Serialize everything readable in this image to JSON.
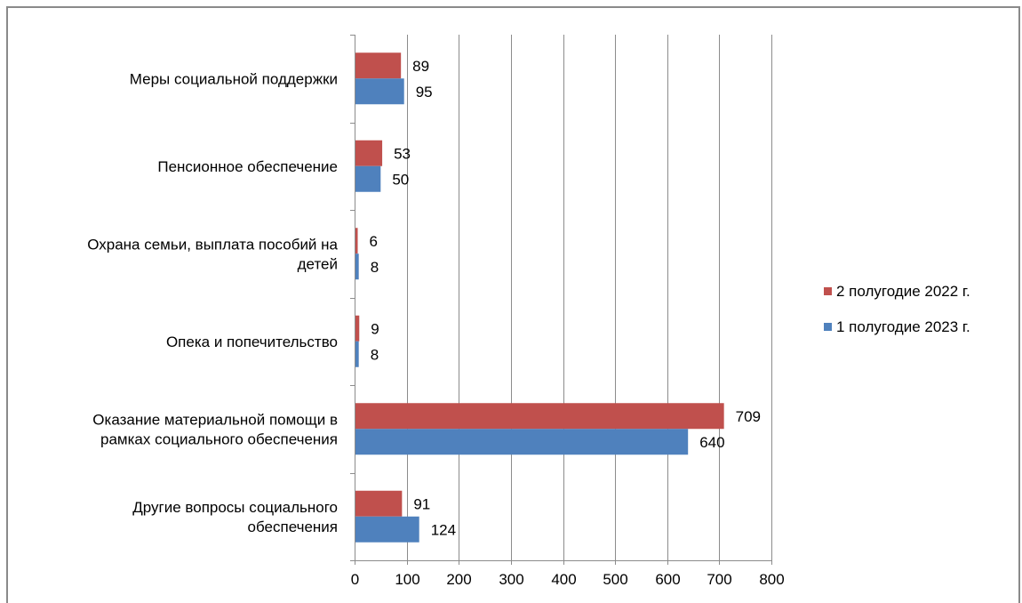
{
  "chart_data": {
    "type": "bar",
    "orientation": "horizontal",
    "categories": [
      [
        "Меры социальной поддержки"
      ],
      [
        "Пенсионное обеспечение"
      ],
      [
        "Охрана семьи, выплата пособий на",
        "детей"
      ],
      [
        "Опека и попечительство"
      ],
      [
        "Оказание материальной помощи в",
        "рамках социального обеспечения"
      ],
      [
        "Другие вопросы социального",
        "обеспечения"
      ]
    ],
    "series": [
      {
        "name": "2 полугодие 2022 г.",
        "color": "#c0504d",
        "values": [
          89,
          53,
          6,
          9,
          709,
          91
        ]
      },
      {
        "name": "1 полугодие 2023 г.",
        "color": "#4f81bd",
        "values": [
          95,
          50,
          8,
          8,
          640,
          124
        ]
      }
    ],
    "xlim": [
      0,
      800
    ],
    "xticks": [
      0,
      100,
      200,
      300,
      400,
      500,
      600,
      700,
      800
    ],
    "grid": true,
    "legend_position": "right"
  }
}
